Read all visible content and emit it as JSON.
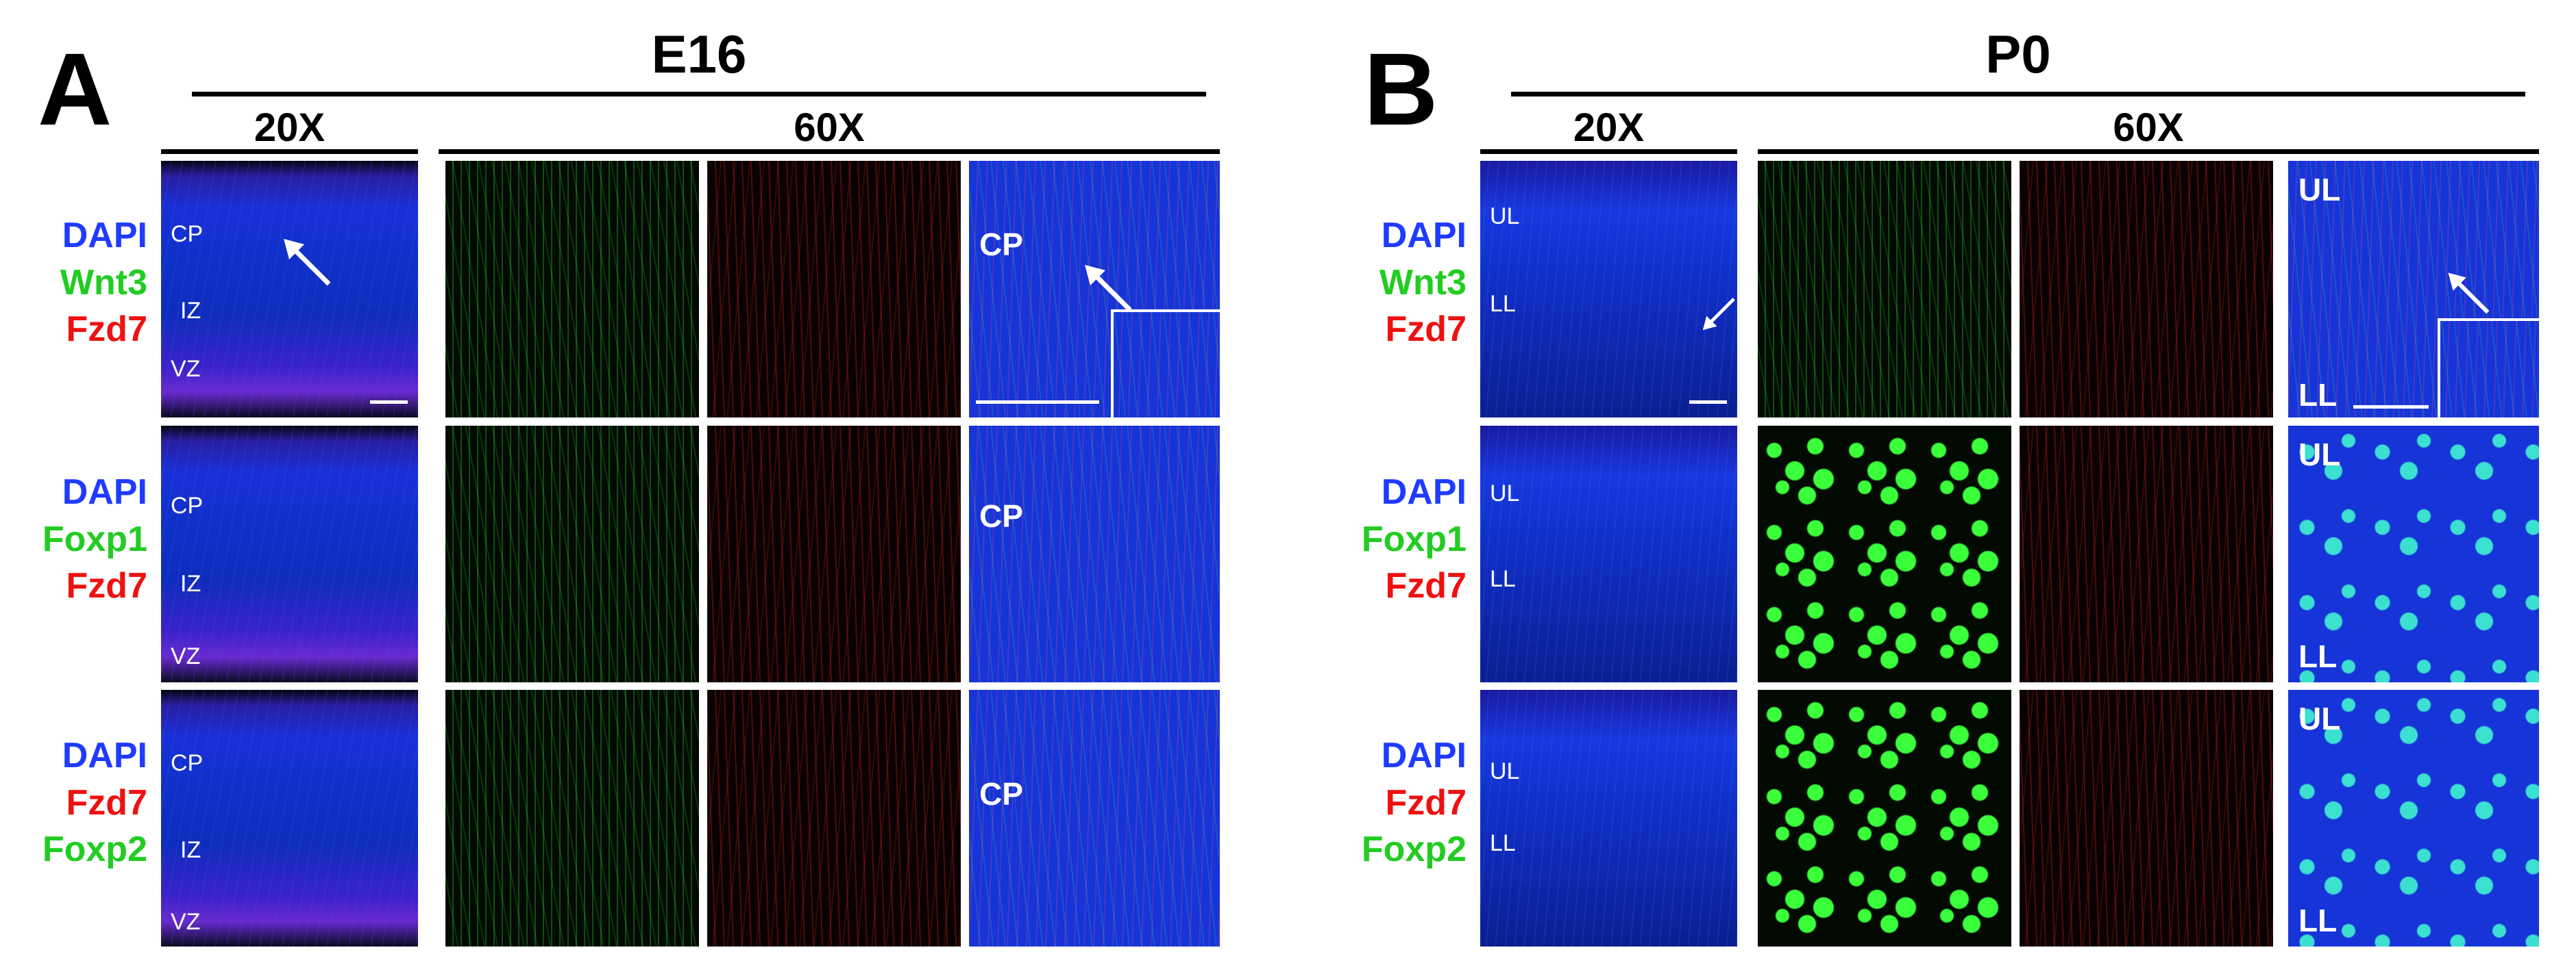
{
  "panel_a": {
    "letter": "A",
    "stage": "E16",
    "mag_low": "20X",
    "mag_high": "60X",
    "rows": [
      {
        "legend": [
          {
            "text": "DAPI",
            "color": "#1f3bff"
          },
          {
            "text": "Wnt3",
            "color": "#22cc22"
          },
          {
            "text": "Fzd7",
            "color": "#ee1111"
          }
        ],
        "regions_low": [
          "CP",
          "IZ",
          "VZ"
        ],
        "region_merge": "CP"
      },
      {
        "legend": [
          {
            "text": "DAPI",
            "color": "#1f3bff"
          },
          {
            "text": "Foxp1",
            "color": "#22cc22"
          },
          {
            "text": "Fzd7",
            "color": "#ee1111"
          }
        ],
        "regions_low": [
          "CP",
          "IZ",
          "VZ"
        ],
        "region_merge": "CP"
      },
      {
        "legend": [
          {
            "text": "DAPI",
            "color": "#1f3bff"
          },
          {
            "text": "Fzd7",
            "color": "#ee1111"
          },
          {
            "text": "Foxp2",
            "color": "#22cc22"
          }
        ],
        "regions_low": [
          "CP",
          "IZ",
          "VZ"
        ],
        "region_merge": "CP"
      }
    ]
  },
  "panel_b": {
    "letter": "B",
    "stage": "P0",
    "mag_low": "20X",
    "mag_high": "60X",
    "rows": [
      {
        "legend": [
          {
            "text": "DAPI",
            "color": "#1f3bff"
          },
          {
            "text": "Wnt3",
            "color": "#22cc22"
          },
          {
            "text": "Fzd7",
            "color": "#ee1111"
          }
        ],
        "regions_low": [
          "UL",
          "LL"
        ],
        "regions_merge": [
          "UL",
          "LL"
        ]
      },
      {
        "legend": [
          {
            "text": "DAPI",
            "color": "#1f3bff"
          },
          {
            "text": "Foxp1",
            "color": "#22cc22"
          },
          {
            "text": "Fzd7",
            "color": "#ee1111"
          }
        ],
        "regions_low": [
          "UL",
          "LL"
        ],
        "regions_merge": [
          "UL",
          "LL"
        ]
      },
      {
        "legend": [
          {
            "text": "DAPI",
            "color": "#1f3bff"
          },
          {
            "text": "Fzd7",
            "color": "#ee1111"
          },
          {
            "text": "Foxp2",
            "color": "#22cc22"
          }
        ],
        "regions_low": [
          "UL",
          "LL"
        ],
        "regions_merge": [
          "UL",
          "LL"
        ]
      }
    ]
  }
}
